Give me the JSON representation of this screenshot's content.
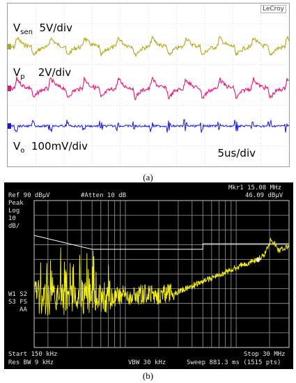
{
  "scope": {
    "brand": "LeCroy",
    "channels": [
      {
        "name": "V",
        "sub": "sen",
        "scale": "5V/div",
        "color": "#b5a81c"
      },
      {
        "name": "V",
        "sub": "p",
        "scale": "2V/div",
        "color": "#e0197a"
      },
      {
        "name": "V",
        "sub": "o",
        "scale": "100mV/div",
        "color": "#1616e6"
      }
    ],
    "timebase": "5us/div"
  },
  "caption_a": "(a)",
  "analyzer": {
    "ref_level": "Ref 90 dBµV",
    "atten": "#Atten 10 dB",
    "marker_label": "Mkr1  15.08 MHz",
    "marker_value": "46.09 dBµV",
    "detector": "Peak",
    "scale_type": "Log",
    "scale_value": "10",
    "scale_unit": "dB/",
    "side_line1": "W1  S2",
    "side_line2": "S3  FS",
    "side_line3": "AA",
    "start": "Start 150 kHz",
    "stop": "Stop 30 MHz",
    "res_bw": "Res BW 9 kHz",
    "vbw": "VBW 30 kHz",
    "sweep": "Sweep 881.3 ms (1515 pts)",
    "marker_id": "1",
    "trace_color": "#f2ee1a"
  },
  "caption_b": "(b)"
}
